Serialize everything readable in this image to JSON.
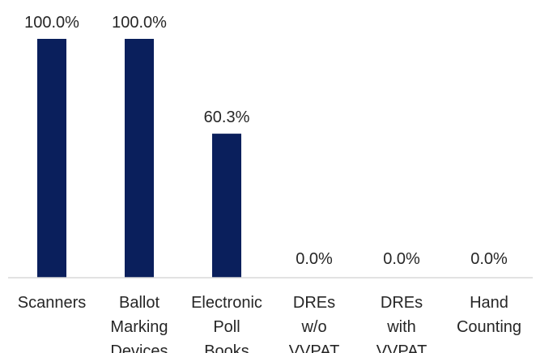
{
  "chart_data": {
    "type": "bar",
    "title": "",
    "xlabel": "",
    "ylabel": "",
    "ylim": [
      0,
      100
    ],
    "grid": false,
    "legend": "none",
    "bar_color": "#0a1f5c",
    "categories": [
      [
        "Scanners"
      ],
      [
        "Ballot",
        "Marking",
        "Devices"
      ],
      [
        "Electronic",
        "Poll",
        "Books"
      ],
      [
        "DREs",
        "w/o",
        "VVPAT"
      ],
      [
        "DREs",
        "with",
        "VVPAT"
      ],
      [
        "Hand",
        "Counting"
      ]
    ],
    "values": [
      100.0,
      100.0,
      60.3,
      0.0,
      0.0,
      0.0
    ],
    "data_labels": [
      "100.0%",
      "100.0%",
      "60.3%",
      "0.0%",
      "0.0%",
      "0.0%"
    ]
  }
}
